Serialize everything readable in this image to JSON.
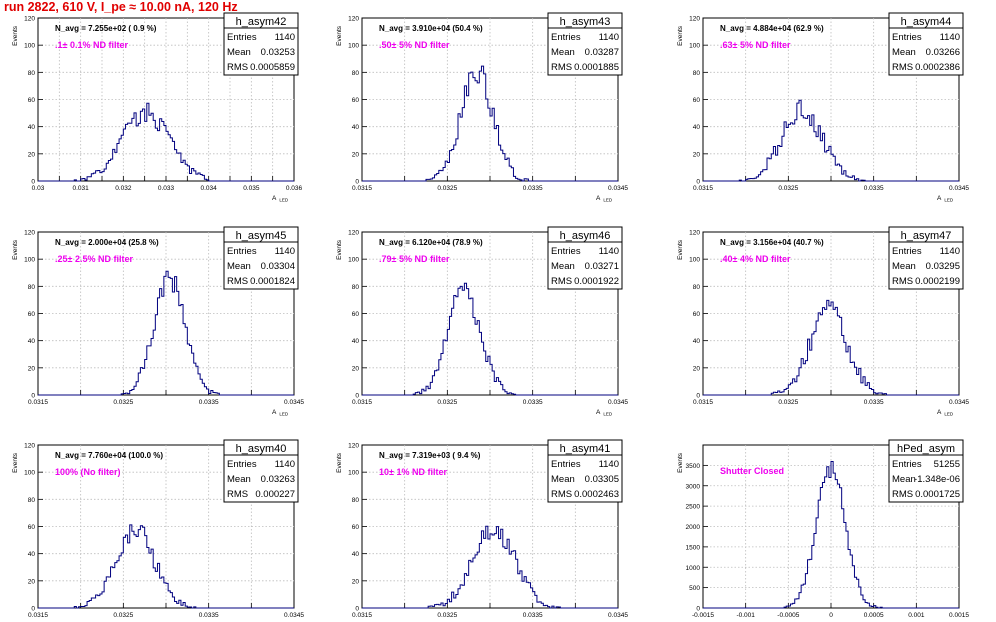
{
  "page": {
    "title": "run 2822,   610 V, I_pe ≈ 10.00 nA, 120 Hz"
  },
  "colors": {
    "histogram": "#00007f",
    "annotation": "#ee00ee",
    "title": "#e00000",
    "grid": "#bdbdbd"
  },
  "stats_labels": {
    "entries": "Entries",
    "mean": "Mean",
    "rms": "RMS"
  },
  "chart_data": [
    {
      "type": "histogram",
      "name": "h_asym42",
      "title": "N_avg = 7.255e+02 ( 0.9 %)",
      "annotation": ".1± 0.1% ND filter",
      "entries": "1140",
      "mean": "0.03253",
      "rms": "0.0005859",
      "xlabel": "A_LED",
      "ylabel": "Events",
      "xlim": [
        0.03,
        0.036
      ],
      "ylim": [
        0,
        120
      ],
      "xticks": [
        0.03,
        0.0305,
        0.031,
        0.0315,
        0.032,
        0.0325,
        0.033,
        0.0335,
        0.034,
        0.0345,
        0.035,
        0.0355,
        0.036
      ],
      "xticklabels": [
        "0.03",
        "",
        "0.031",
        "",
        "0.032",
        "",
        "0.033",
        "",
        "0.034",
        "",
        "0.035",
        "",
        "0.036"
      ],
      "yticks": [
        0,
        20,
        40,
        60,
        80,
        100,
        120
      ],
      "peak": {
        "center": 0.03253,
        "sigma": 0.00055,
        "height": 50
      }
    },
    {
      "type": "histogram",
      "name": "h_asym43",
      "title": "N_avg = 3.910e+04 (50.4 %)",
      "annotation": ".50± 5% ND filter",
      "entries": "1140",
      "mean": "0.03287",
      "rms": "0.0001885",
      "xlabel": "A_LED",
      "ylabel": "Events",
      "xlim": [
        0.0315,
        0.0345
      ],
      "ylim": [
        0,
        120
      ],
      "xticks": [
        0.0315,
        0.032,
        0.0325,
        0.033,
        0.0335,
        0.034,
        0.0345
      ],
      "xticklabels": [
        "0.0315",
        "",
        "0.0325",
        "",
        "0.0335",
        "",
        "0.0345"
      ],
      "yticks": [
        0,
        20,
        40,
        60,
        80,
        100,
        120
      ],
      "peak": {
        "center": 0.03285,
        "sigma": 0.00019,
        "height": 80
      }
    },
    {
      "type": "histogram",
      "name": "h_asym44",
      "title": "N_avg = 4.884e+04 (62.9 %)",
      "annotation": ".63± 5% ND filter",
      "entries": "1140",
      "mean": "0.03266",
      "rms": "0.0002386",
      "xlabel": "A_LED",
      "ylabel": "Events",
      "xlim": [
        0.0315,
        0.0345
      ],
      "ylim": [
        0,
        120
      ],
      "xticks": [
        0.0315,
        0.032,
        0.0325,
        0.033,
        0.0335,
        0.034,
        0.0345
      ],
      "xticklabels": [
        "0.0315",
        "",
        "0.0325",
        "",
        "0.0335",
        "",
        "0.0345"
      ],
      "yticks": [
        0,
        20,
        40,
        60,
        80,
        100,
        120
      ],
      "peak": {
        "center": 0.03266,
        "sigma": 0.00024,
        "height": 52
      }
    },
    {
      "type": "histogram",
      "name": "h_asym45",
      "title": "N_avg = 2.000e+04 (25.8 %)",
      "annotation": ".25± 2.5% ND filter",
      "entries": "1140",
      "mean": "0.03304",
      "rms": "0.0001824",
      "xlabel": "A_LED",
      "ylabel": "Events",
      "xlim": [
        0.0315,
        0.0345
      ],
      "ylim": [
        0,
        120
      ],
      "xticks": [
        0.0315,
        0.032,
        0.0325,
        0.033,
        0.0335,
        0.034,
        0.0345
      ],
      "xticklabels": [
        "0.0315",
        "",
        "0.0325",
        "",
        "0.0335",
        "",
        "0.0345"
      ],
      "yticks": [
        0,
        20,
        40,
        60,
        80,
        100,
        120
      ],
      "peak": {
        "center": 0.03304,
        "sigma": 0.00018,
        "height": 85
      }
    },
    {
      "type": "histogram",
      "name": "h_asym46",
      "title": "N_avg = 6.120e+04 (78.9 %)",
      "annotation": ".79± 5% ND filter",
      "entries": "1140",
      "mean": "0.03271",
      "rms": "0.0001922",
      "xlabel": "A_LED",
      "ylabel": "Events",
      "xlim": [
        0.0315,
        0.0345
      ],
      "ylim": [
        0,
        120
      ],
      "xticks": [
        0.0315,
        0.032,
        0.0325,
        0.033,
        0.0335,
        0.034,
        0.0345
      ],
      "xticklabels": [
        "0.0315",
        "",
        "0.0325",
        "",
        "0.0335",
        "",
        "0.0345"
      ],
      "yticks": [
        0,
        20,
        40,
        60,
        80,
        100,
        120
      ],
      "peak": {
        "center": 0.0327,
        "sigma": 0.00019,
        "height": 78
      }
    },
    {
      "type": "histogram",
      "name": "h_asym47",
      "title": "N_avg = 3.156e+04 (40.7 %)",
      "annotation": ".40± 4% ND filter",
      "entries": "1140",
      "mean": "0.03295",
      "rms": "0.0002199",
      "xlabel": "A_LED",
      "ylabel": "Events",
      "xlim": [
        0.0315,
        0.0345
      ],
      "ylim": [
        0,
        120
      ],
      "xticks": [
        0.0315,
        0.032,
        0.0325,
        0.033,
        0.0335,
        0.034,
        0.0345
      ],
      "xticklabels": [
        "0.0315",
        "",
        "0.0325",
        "",
        "0.0335",
        "",
        "0.0345"
      ],
      "yticks": [
        0,
        20,
        40,
        60,
        80,
        100,
        120
      ],
      "peak": {
        "center": 0.03297,
        "sigma": 0.00022,
        "height": 62
      }
    },
    {
      "type": "histogram",
      "name": "h_asym40",
      "title": "N_avg = 7.760e+04 (100.0 %)",
      "annotation": "100% (No filter)",
      "entries": "1140",
      "mean": "0.03263",
      "rms": "0.000227",
      "xlabel": "A_LED",
      "ylabel": "Events",
      "xlim": [
        0.0315,
        0.0345
      ],
      "ylim": [
        0,
        120
      ],
      "xticks": [
        0.0315,
        0.032,
        0.0325,
        0.033,
        0.0335,
        0.034,
        0.0345
      ],
      "xticklabels": [
        "0.0315",
        "",
        "0.0325",
        "",
        "0.0335",
        "",
        "0.0345"
      ],
      "yticks": [
        0,
        20,
        40,
        60,
        80,
        100,
        120
      ],
      "peak": {
        "center": 0.03263,
        "sigma": 0.00023,
        "height": 58
      }
    },
    {
      "type": "histogram",
      "name": "h_asym41",
      "title": "N_avg = 7.319e+03 ( 9.4 %)",
      "annotation": "10± 1% ND filter",
      "entries": "1140",
      "mean": "0.03305",
      "rms": "0.0002463",
      "xlabel": "A_LED",
      "ylabel": "Events",
      "xlim": [
        0.0315,
        0.0345
      ],
      "ylim": [
        0,
        120
      ],
      "xticks": [
        0.0315,
        0.032,
        0.0325,
        0.033,
        0.0335,
        0.034,
        0.0345
      ],
      "xticklabels": [
        "0.0315",
        "",
        "0.0325",
        "",
        "0.0335",
        "",
        "0.0345"
      ],
      "yticks": [
        0,
        20,
        40,
        60,
        80,
        100,
        120
      ],
      "peak": {
        "center": 0.03305,
        "sigma": 0.00025,
        "height": 58
      }
    },
    {
      "type": "histogram",
      "name": "hPed_asym",
      "title": "",
      "annotation": "Shutter Closed",
      "entries": "51255",
      "mean": "-1.348e-06",
      "rms": "0.0001725",
      "xlabel": "",
      "ylabel": "Events",
      "xlim": [
        -0.0015,
        0.0015
      ],
      "ylim": [
        0,
        4000
      ],
      "xticks": [
        -0.0015,
        -0.001,
        -0.0005,
        0,
        0.0005,
        0.001,
        0.0015
      ],
      "xticklabels": [
        "-0.0015",
        "-0.001",
        "-0.0005",
        "0",
        "0.0005",
        "0.001",
        "0.0015"
      ],
      "yticks": [
        0,
        500,
        1000,
        1500,
        2000,
        2500,
        3000,
        3500,
        4000
      ],
      "yticklabels": [
        "0",
        "500",
        "1000",
        "1500",
        "2000",
        "2500",
        "3000",
        "3500",
        ""
      ],
      "peak": {
        "center": 0.0,
        "sigma": 0.00017,
        "height": 3450
      }
    }
  ]
}
